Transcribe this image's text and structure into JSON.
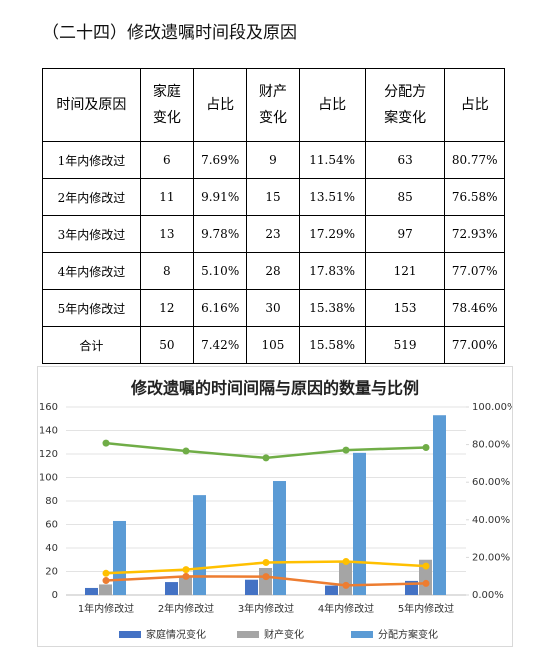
{
  "heading": "（二十四）修改遗嘱时间段及原因",
  "table": {
    "header": [
      "时间及原因",
      "家庭变化",
      "占比",
      "财产变化",
      "占比",
      "分配方案变化",
      "占比"
    ],
    "rows": [
      [
        "1年内修改过",
        "6",
        "7.69%",
        "9",
        "11.54%",
        "63",
        "80.77%"
      ],
      [
        "2年内修改过",
        "11",
        "9.91%",
        "15",
        "13.51%",
        "85",
        "76.58%"
      ],
      [
        "3年内修改过",
        "13",
        "9.78%",
        "23",
        "17.29%",
        "97",
        "72.93%"
      ],
      [
        "4年内修改过",
        "8",
        "5.10%",
        "28",
        "17.83%",
        "121",
        "77.07%"
      ],
      [
        "5年内修改过",
        "12",
        "6.16%",
        "30",
        "15.38%",
        "153",
        "78.46%"
      ],
      [
        "合计",
        "50",
        "7.42%",
        "105",
        "15.58%",
        "519",
        "77.00%"
      ]
    ]
  },
  "chart_data": {
    "type": "bar",
    "title": "修改遗嘱的时间间隔与原因的数量与比例",
    "categories": [
      "1年内修改过",
      "2年内修改过",
      "3年内修改过",
      "4年内修改过",
      "5年内修改过"
    ],
    "series": [
      {
        "name": "家庭情况变化",
        "type": "bar",
        "color": "#4472c4",
        "values": [
          6,
          11,
          13,
          8,
          12
        ]
      },
      {
        "name": "财产变化",
        "type": "bar",
        "color": "#a5a5a5",
        "values": [
          9,
          15,
          23,
          28,
          30
        ]
      },
      {
        "name": "分配方案变化",
        "type": "bar",
        "color": "#5b9bd5",
        "values": [
          63,
          85,
          97,
          121,
          153
        ]
      },
      {
        "type": "line",
        "axis": "y2",
        "color": "#ed7d31",
        "values": [
          7.69,
          9.91,
          9.78,
          5.1,
          6.16
        ]
      },
      {
        "type": "line",
        "axis": "y2",
        "color": "#ffc000",
        "values": [
          11.54,
          13.51,
          17.29,
          17.83,
          15.38
        ]
      },
      {
        "type": "line",
        "axis": "y2",
        "color": "#70ad47",
        "values": [
          80.77,
          76.58,
          72.93,
          77.07,
          78.46
        ]
      }
    ],
    "ylim": [
      0,
      160
    ],
    "yticks": [
      0,
      20,
      40,
      60,
      80,
      100,
      120,
      140,
      160
    ],
    "y2lim": [
      0,
      100
    ],
    "y2ticks": [
      {
        "value": 0,
        "label": "0.00%"
      },
      {
        "value": 20,
        "label": "20.00%"
      },
      {
        "value": 40,
        "label": "40.00%"
      },
      {
        "value": 60,
        "label": "60.00%"
      },
      {
        "value": 80,
        "label": "80.00%"
      },
      {
        "value": 100,
        "label": "100.00%"
      }
    ],
    "grid": true,
    "legend": "bottom"
  }
}
